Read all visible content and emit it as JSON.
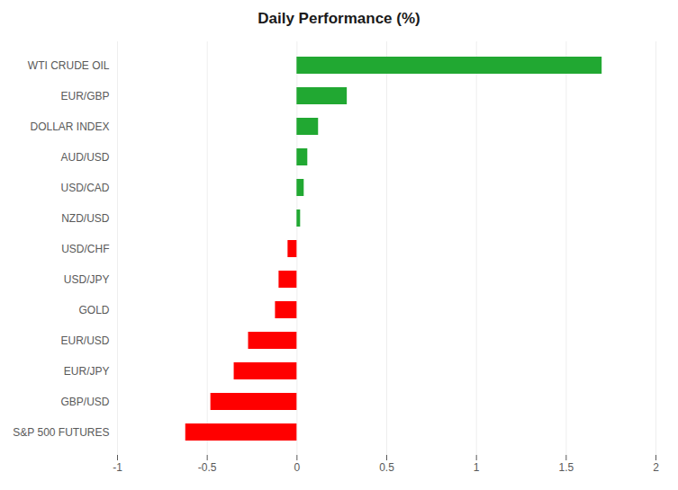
{
  "chart_data": {
    "type": "bar",
    "orientation": "horizontal",
    "title": "Daily Performance (%)",
    "categories": [
      "WTI CRUDE OIL",
      "EUR/GBP",
      "DOLLAR INDEX",
      "AUD/USD",
      "USD/CAD",
      "NZD/USD",
      "USD/CHF",
      "USD/JPY",
      "GOLD",
      "EUR/USD",
      "EUR/JPY",
      "GBP/USD",
      "S&P 500 FUTURES"
    ],
    "values": [
      1.7,
      0.28,
      0.12,
      0.06,
      0.04,
      0.02,
      -0.05,
      -0.1,
      -0.12,
      -0.27,
      -0.35,
      -0.48,
      -0.62
    ],
    "colors": [
      "#21a832",
      "#21a832",
      "#21a832",
      "#21a832",
      "#21a832",
      "#21a832",
      "#ff0000",
      "#ff0000",
      "#ff0000",
      "#ff0000",
      "#ff0000",
      "#ff0000",
      "#ff0000"
    ],
    "xlim": [
      -1,
      2
    ],
    "xticks": [
      -1,
      -0.5,
      0,
      0.5,
      1,
      1.5,
      2
    ],
    "grid": true
  }
}
